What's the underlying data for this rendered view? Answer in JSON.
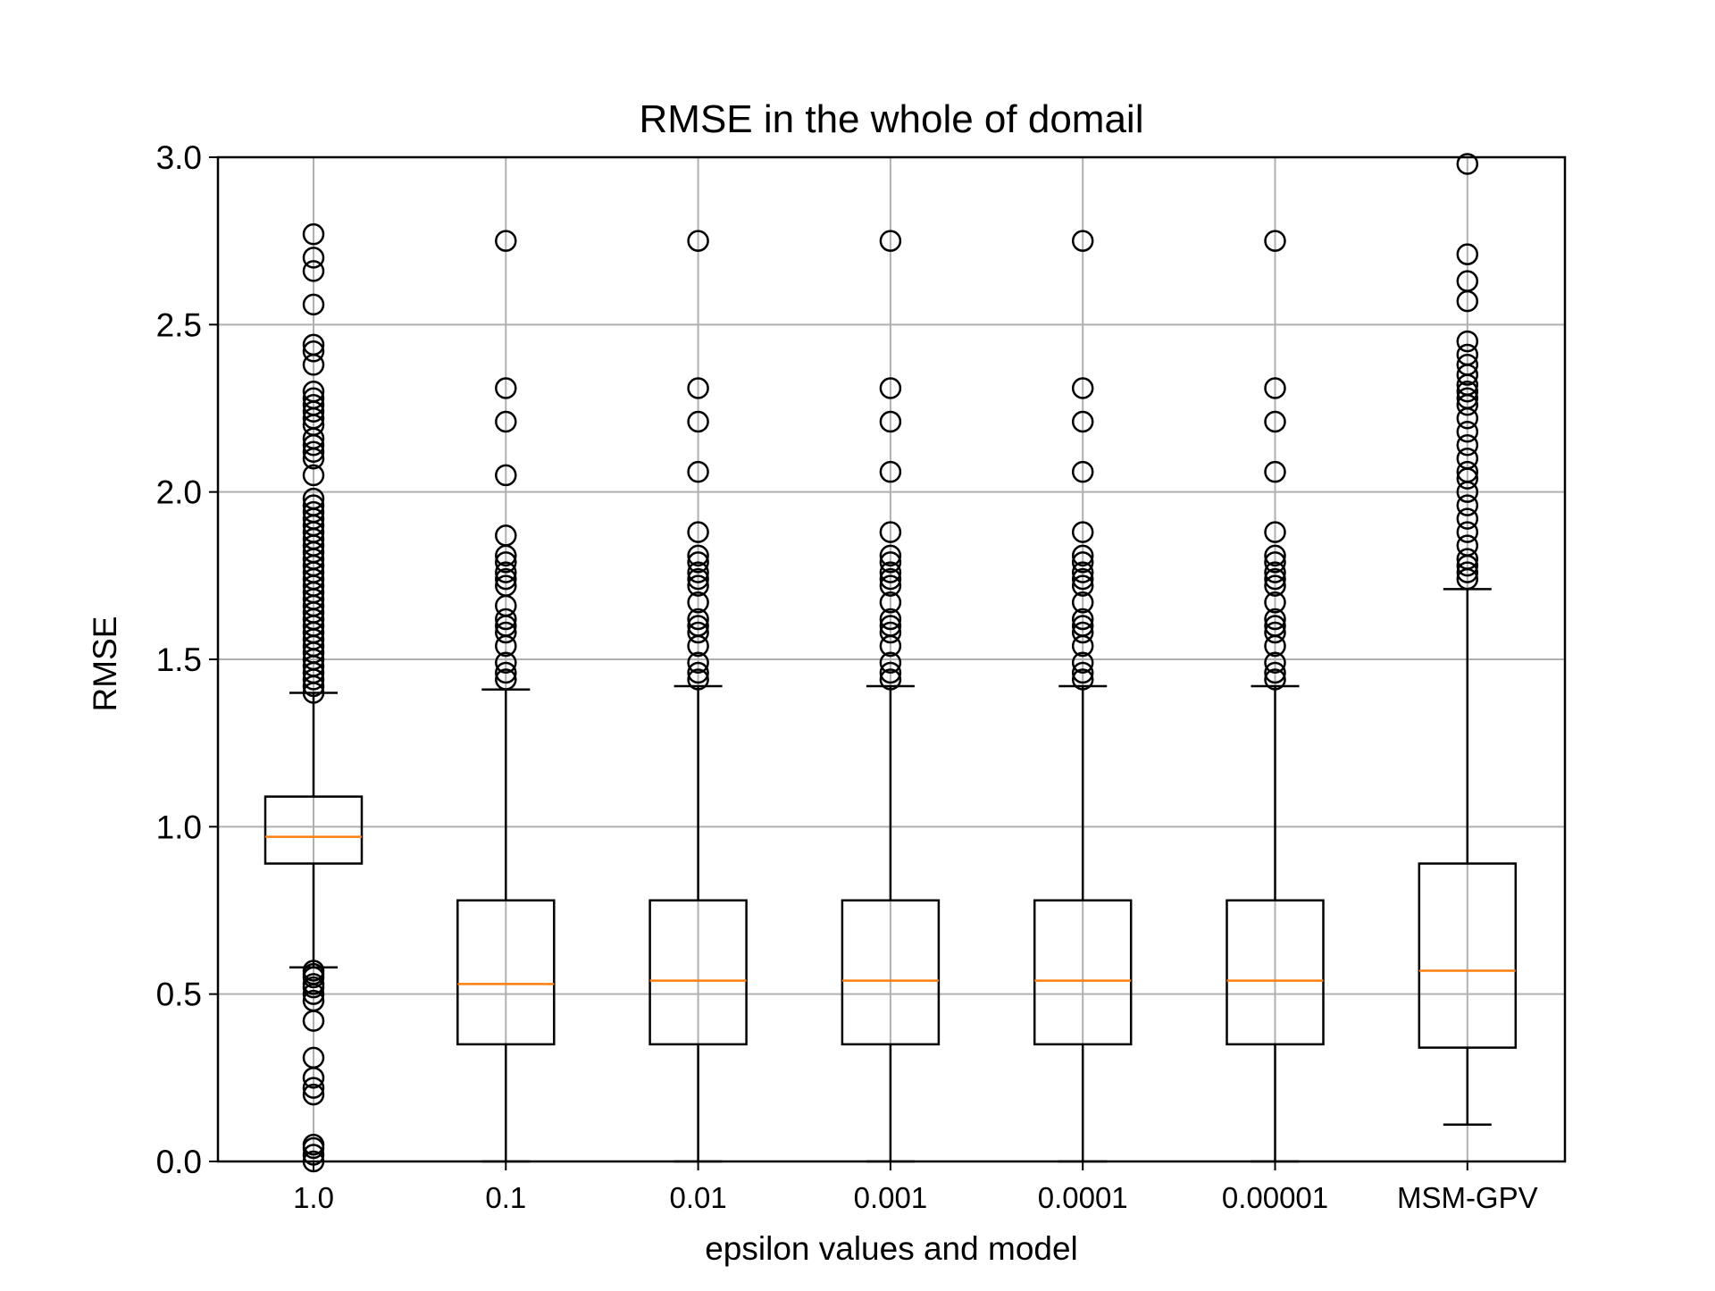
{
  "chart_data": {
    "type": "boxplot",
    "title": "RMSE in the whole of domail",
    "xlabel": "epsilon values and model",
    "ylabel": "RMSE",
    "ylim": [
      0,
      3.0
    ],
    "yticks": [
      "0.0",
      "0.5",
      "1.0",
      "1.5",
      "2.0",
      "2.5",
      "3.0"
    ],
    "grid": true,
    "categories": [
      "1.0",
      "0.1",
      "0.01",
      "0.001",
      "0.0001",
      "0.00001",
      "MSM-GPV"
    ],
    "boxes": [
      {
        "whisker_low": 0.58,
        "q1": 0.89,
        "median": 0.97,
        "q3": 1.09,
        "whisker_high": 1.4,
        "outliers": [
          0.0,
          0.02,
          0.04,
          0.05,
          0.2,
          0.22,
          0.25,
          0.31,
          0.42,
          0.48,
          0.5,
          0.52,
          0.53,
          0.55,
          0.56,
          0.57,
          1.4,
          1.42,
          1.44,
          1.46,
          1.48,
          1.5,
          1.52,
          1.54,
          1.56,
          1.58,
          1.6,
          1.62,
          1.64,
          1.66,
          1.68,
          1.7,
          1.72,
          1.74,
          1.76,
          1.78,
          1.8,
          1.82,
          1.84,
          1.86,
          1.88,
          1.9,
          1.92,
          1.94,
          1.96,
          1.98,
          2.05,
          2.1,
          2.12,
          2.14,
          2.16,
          2.2,
          2.22,
          2.24,
          2.26,
          2.28,
          2.3,
          2.38,
          2.42,
          2.44,
          2.56,
          2.66,
          2.7,
          2.77
        ]
      },
      {
        "whisker_low": 0.0,
        "q1": 0.35,
        "median": 0.53,
        "q3": 0.78,
        "whisker_high": 1.41,
        "outliers": [
          1.44,
          1.46,
          1.49,
          1.54,
          1.58,
          1.6,
          1.62,
          1.66,
          1.72,
          1.74,
          1.76,
          1.79,
          1.81,
          1.87,
          2.05,
          2.21,
          2.31,
          2.75
        ]
      },
      {
        "whisker_low": 0.0,
        "q1": 0.35,
        "median": 0.54,
        "q3": 0.78,
        "whisker_high": 1.42,
        "outliers": [
          1.44,
          1.46,
          1.49,
          1.54,
          1.58,
          1.6,
          1.62,
          1.67,
          1.72,
          1.74,
          1.76,
          1.79,
          1.81,
          1.88,
          2.06,
          2.21,
          2.31,
          2.75
        ]
      },
      {
        "whisker_low": 0.0,
        "q1": 0.35,
        "median": 0.54,
        "q3": 0.78,
        "whisker_high": 1.42,
        "outliers": [
          1.44,
          1.46,
          1.49,
          1.54,
          1.58,
          1.6,
          1.62,
          1.67,
          1.72,
          1.74,
          1.76,
          1.79,
          1.81,
          1.88,
          2.06,
          2.21,
          2.31,
          2.75
        ]
      },
      {
        "whisker_low": 0.0,
        "q1": 0.35,
        "median": 0.54,
        "q3": 0.78,
        "whisker_high": 1.42,
        "outliers": [
          1.44,
          1.46,
          1.49,
          1.54,
          1.58,
          1.6,
          1.62,
          1.67,
          1.72,
          1.74,
          1.76,
          1.79,
          1.81,
          1.88,
          2.06,
          2.21,
          2.31,
          2.75
        ]
      },
      {
        "whisker_low": 0.0,
        "q1": 0.35,
        "median": 0.54,
        "q3": 0.78,
        "whisker_high": 1.42,
        "outliers": [
          1.44,
          1.46,
          1.49,
          1.54,
          1.58,
          1.6,
          1.62,
          1.67,
          1.72,
          1.74,
          1.76,
          1.79,
          1.81,
          1.88,
          2.06,
          2.21,
          2.31,
          2.75
        ]
      },
      {
        "whisker_low": 0.11,
        "q1": 0.34,
        "median": 0.57,
        "q3": 0.89,
        "whisker_high": 1.71,
        "outliers": [
          1.74,
          1.76,
          1.78,
          1.8,
          1.84,
          1.88,
          1.92,
          1.96,
          2.0,
          2.04,
          2.06,
          2.1,
          2.14,
          2.18,
          2.22,
          2.26,
          2.28,
          2.3,
          2.32,
          2.35,
          2.38,
          2.41,
          2.45,
          2.57,
          2.63,
          2.71,
          2.98
        ]
      }
    ],
    "colors": {
      "box": "#000000",
      "median": "#ff7f0e",
      "grid": "#b0b0b0"
    }
  }
}
